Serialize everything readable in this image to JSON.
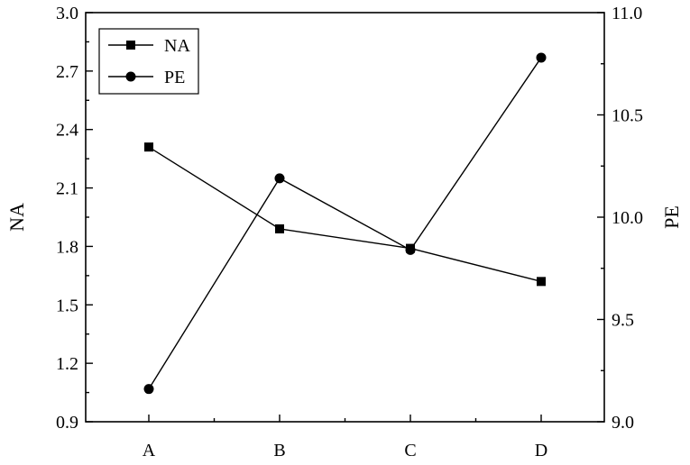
{
  "chart_data": {
    "type": "line",
    "categories": [
      "A",
      "B",
      "C",
      "D"
    ],
    "series": [
      {
        "name": "NA",
        "axis": "left",
        "marker": "square",
        "values": [
          2.31,
          1.89,
          1.79,
          1.62
        ]
      },
      {
        "name": "PE",
        "axis": "right",
        "marker": "circle",
        "values": [
          9.16,
          10.19,
          9.84,
          10.78
        ]
      }
    ],
    "ylabel_left": "NA",
    "ylabel_right": "PE",
    "ylim_left": [
      0.9,
      3.0
    ],
    "ylim_right": [
      9.0,
      11.0
    ],
    "yticks_left": [
      "0.9",
      "1.2",
      "1.5",
      "1.8",
      "2.1",
      "2.4",
      "2.7",
      "3.0"
    ],
    "yticks_right": [
      "9.0",
      "9.5",
      "10.0",
      "10.5",
      "11.0"
    ],
    "legend": "top-left",
    "grid": false,
    "colors": {
      "line": "#000000",
      "marker": "#000000"
    }
  }
}
